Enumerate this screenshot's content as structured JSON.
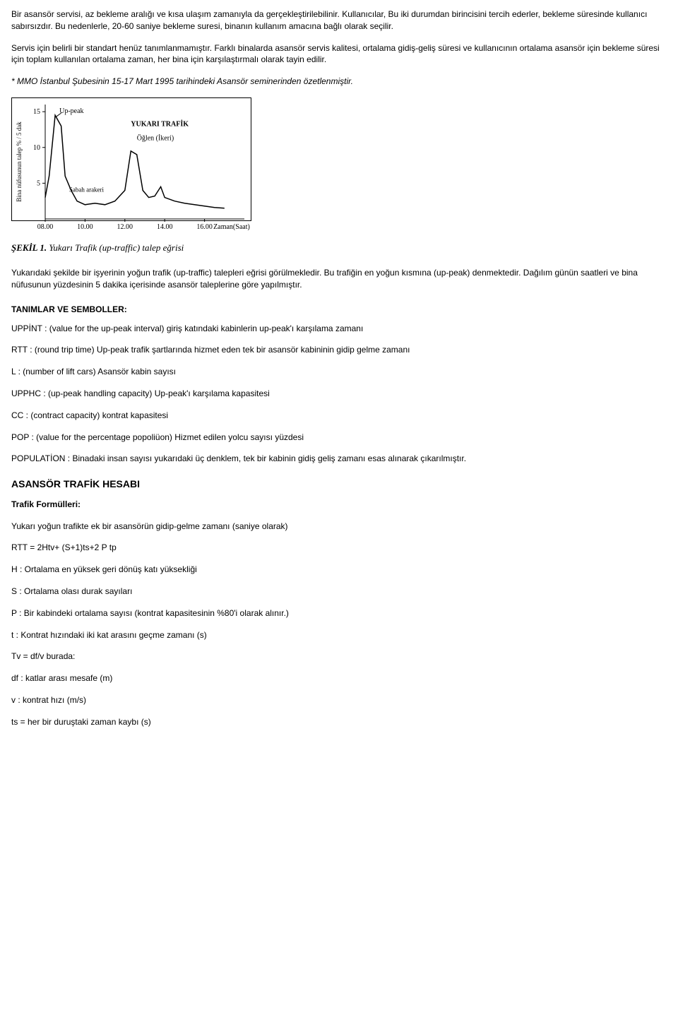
{
  "paragraphs": {
    "p1": "Bir asansör servisi, az bekleme aralığı ve kısa ulaşım zamanıyla da gerçekleştirilebilinir. Kullanıcılar, Bu iki durumdan birincisini tercih ederler, bekleme süresinde kullanıcı sabırsızdır. Bu nedenlerle, 20-60 saniye bekleme suresi, binanın kullanım amacına bağlı olarak seçilir.",
    "p2": "Servis için belirli bir standart henüz tanımlanmamıştır. Farklı binalarda asansör servis kalitesi, ortalama gidiş-geliş süresi ve kullanıcının ortalama asansör için bekleme süresi için toplam kullanılan ortalama zaman, her bina için karşılaştırmalı olarak tayin edilir.",
    "p3": "* MMO İstanbul Şubesinin 15-17 Mart 1995 tarihindeki Asansör seminerinden özetlenmiştir.",
    "p4": "Yukarıdaki şekilde bir işyerinin yoğun trafik (up-traffic) talepleri eğrisi görülmekledir. Bu trafiğin en yoğun kısmına (up-peak) denmektedir. Dağılım günün saatleri ve bina nüfusunun yüzdesinin 5 dakika içerisinde asansör taleplerine göre yapılmıştır."
  },
  "chart": {
    "type": "line",
    "title_inside_1": "Up-peak",
    "title_inside_2": "YUKARI TRAFİK",
    "title_inside_3": "Öğlen (İkeri)",
    "title_inside_4": "Sabah arakeri",
    "caption_prefix": "ŞEKİL 1.",
    "caption_text": "Yukarı Trafik (up-traffic) talep eğrisi",
    "x_ticks": [
      "08.00",
      "10.00",
      "12.00",
      "14.00",
      "16.00",
      "Zaman(Saat)"
    ],
    "y_ticks": [
      "5",
      "10",
      "15"
    ],
    "y_label": "Bina nüfusunun talep % / 5 dak",
    "xlim": [
      8,
      18
    ],
    "ylim": [
      0,
      16
    ],
    "line_color": "#000000",
    "axis_color": "#000000",
    "background_color": "#ffffff",
    "line_width": 1.5,
    "font_size_labels": 10,
    "points": [
      [
        8.0,
        3.0
      ],
      [
        8.2,
        6.0
      ],
      [
        8.5,
        14.5
      ],
      [
        8.8,
        13.0
      ],
      [
        9.0,
        6.0
      ],
      [
        9.3,
        4.0
      ],
      [
        9.6,
        2.5
      ],
      [
        10.0,
        2.0
      ],
      [
        10.5,
        2.2
      ],
      [
        11.0,
        2.0
      ],
      [
        11.5,
        2.5
      ],
      [
        12.0,
        4.0
      ],
      [
        12.3,
        9.5
      ],
      [
        12.6,
        9.0
      ],
      [
        12.9,
        4.0
      ],
      [
        13.2,
        3.0
      ],
      [
        13.5,
        3.2
      ],
      [
        13.8,
        4.5
      ],
      [
        14.0,
        3.0
      ],
      [
        14.5,
        2.5
      ],
      [
        15.0,
        2.2
      ],
      [
        15.5,
        2.0
      ],
      [
        16.0,
        1.8
      ],
      [
        16.5,
        1.6
      ],
      [
        17.0,
        1.5
      ]
    ]
  },
  "sections": {
    "definitions_title": "TANIMLAR VE SEMBOLLER:",
    "traffic_title": "ASANSÖR TRAFİK HESABI",
    "formulas_title": "Trafik Formülleri:"
  },
  "definitions": {
    "uppint": "UPPİNT : (value for the up-peak interval) giriş katındaki kabinlerin up-peak'ı karşılama zamanı",
    "rtt": "RTT : (round trip time) Up-peak trafik şartlarında hizmet eden tek bir asansör kabininin gidip gelme zamanı",
    "l": "L : (number of lift cars) Asansör kabin sayısı",
    "upphc": "UPPHC : (up-peak handling capacity) Up-peak'ı karşılama kapasitesi",
    "cc": "CC : (contract capacity) kontrat kapasitesi",
    "pop": "POP : (value for the percentage popoliüon) Hizmet edilen yolcu sayısı yüzdesi",
    "population": "POPULATİON : Binadaki insan sayısı yukarıdaki üç denklem, tek bir kabinin gidiş geliş zamanı esas alınarak çıkarılmıştır."
  },
  "formulas": {
    "intro": "Yukarı yoğun trafikte ek bir asansörün gidip-gelme zamanı (saniye olarak)",
    "rtt_eq": "RTT = 2Htv+ (S+1)ts+2 P tp",
    "h": "H : Ortalama en yüksek geri dönüş katı yüksekliği",
    "s": "S : Ortalama olası durak sayıları",
    "p": "P : Bir kabindeki ortalama sayısı (kontrat kapasitesinin %80'i olarak alınır.)",
    "t": "t : Kontrat hızındaki iki kat arasını geçme zamanı (s)",
    "tv": "Tv = df/v burada:",
    "df": "df : katlar arası mesafe (m)",
    "v": "v : kontrat hızı (m/s)",
    "ts": "ts = her bir duruştaki zaman kaybı (s)"
  }
}
